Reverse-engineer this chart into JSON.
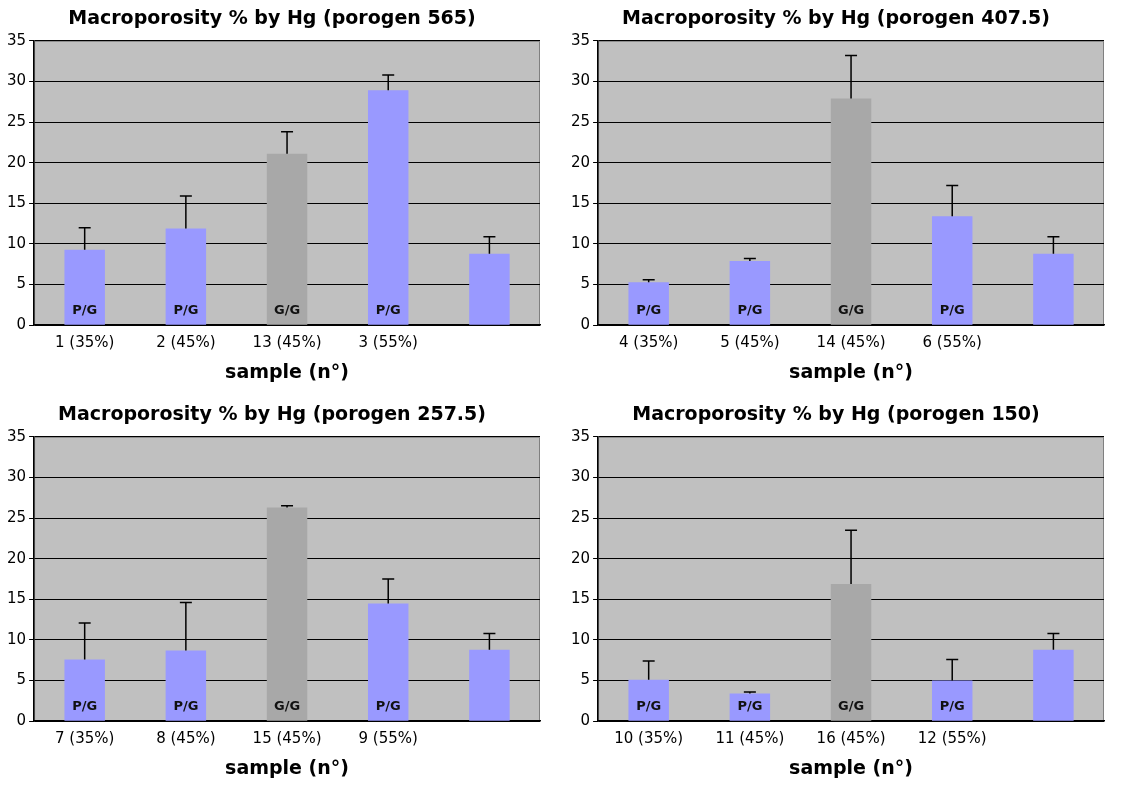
{
  "chart_data": [
    {
      "type": "bar",
      "title": "Macroporosity % by Hg (porogen 565)",
      "xlabel": "sample (n°)",
      "categories": [
        "1 (35%)",
        "2 (45%)",
        "13 (45%)",
        "3 (55%)",
        null
      ],
      "values": [
        9.3,
        11.9,
        21.1,
        28.9,
        8.8
      ],
      "errors": [
        [
          9.3,
          12.0
        ],
        [
          11.9,
          15.9
        ],
        [
          21.1,
          23.8
        ],
        [
          28.9,
          30.8
        ],
        [
          8.8,
          10.9
        ]
      ],
      "colors": [
        "#9999ff",
        "#9999ff",
        "#a8a8a8",
        "#9999ff",
        "#9999ff"
      ],
      "ylim": [
        0,
        35
      ],
      "yticks": [
        0,
        5,
        10,
        15,
        20,
        25,
        30,
        35
      ],
      "grid": "y",
      "legend": false,
      "annotations": [
        "P/G",
        "P/G",
        "G/G",
        "P/G"
      ]
    },
    {
      "type": "bar",
      "title": "Macroporosity % by Hg (porogen 407.5)",
      "xlabel": "sample (n°)",
      "categories": [
        "4 (35%)",
        "5 (45%)",
        "14 (45%)",
        "6 (55%)",
        null
      ],
      "values": [
        5.3,
        7.9,
        27.9,
        13.4,
        8.8
      ],
      "errors": [
        [
          5.3,
          5.6
        ],
        [
          7.9,
          8.2
        ],
        [
          27.9,
          33.2
        ],
        [
          13.4,
          17.2
        ],
        [
          8.8,
          10.9
        ]
      ],
      "colors": [
        "#9999ff",
        "#9999ff",
        "#a8a8a8",
        "#9999ff",
        "#9999ff"
      ],
      "ylim": [
        0,
        35
      ],
      "yticks": [
        0,
        5,
        10,
        15,
        20,
        25,
        30,
        35
      ],
      "grid": "y",
      "legend": false,
      "annotations": [
        "P/G",
        "P/G",
        "G/G",
        "P/G"
      ]
    },
    {
      "type": "bar",
      "title": "Macroporosity % by Hg (porogen 257.5)",
      "xlabel": "sample (n°)",
      "categories": [
        "7 (35%)",
        "8 (45%)",
        "15 (45%)",
        "9 (55%)",
        null
      ],
      "values": [
        7.6,
        8.7,
        26.3,
        14.5,
        8.8
      ],
      "errors": [
        [
          7.6,
          12.1
        ],
        [
          8.7,
          14.6
        ],
        [
          26.3,
          26.5
        ],
        [
          14.5,
          17.5
        ],
        [
          8.8,
          10.8
        ]
      ],
      "colors": [
        "#9999ff",
        "#9999ff",
        "#a8a8a8",
        "#9999ff",
        "#9999ff"
      ],
      "ylim": [
        0,
        35
      ],
      "yticks": [
        0,
        5,
        10,
        15,
        20,
        25,
        30,
        35
      ],
      "grid": "y",
      "legend": false,
      "annotations": [
        "P/G",
        "P/G",
        "G/G",
        "P/G"
      ]
    },
    {
      "type": "bar",
      "title": "Macroporosity % by Hg (porogen 150)",
      "xlabel": "sample (n°)",
      "categories": [
        "10 (35%)",
        "11 (45%)",
        "16 (45%)",
        "12 (55%)",
        null
      ],
      "values": [
        5.1,
        3.4,
        16.9,
        5.0,
        8.8
      ],
      "errors": [
        [
          5.1,
          7.4
        ],
        [
          3.4,
          3.6
        ],
        [
          16.9,
          23.5
        ],
        [
          5.0,
          7.6
        ],
        [
          8.8,
          10.8
        ]
      ],
      "colors": [
        "#9999ff",
        "#9999ff",
        "#a8a8a8",
        "#9999ff",
        "#9999ff"
      ],
      "ylim": [
        0,
        35
      ],
      "yticks": [
        0,
        5,
        10,
        15,
        20,
        25,
        30,
        35
      ],
      "grid": "y",
      "legend": false,
      "annotations": [
        "P/G",
        "P/G",
        "G/G",
        "P/G"
      ]
    }
  ]
}
